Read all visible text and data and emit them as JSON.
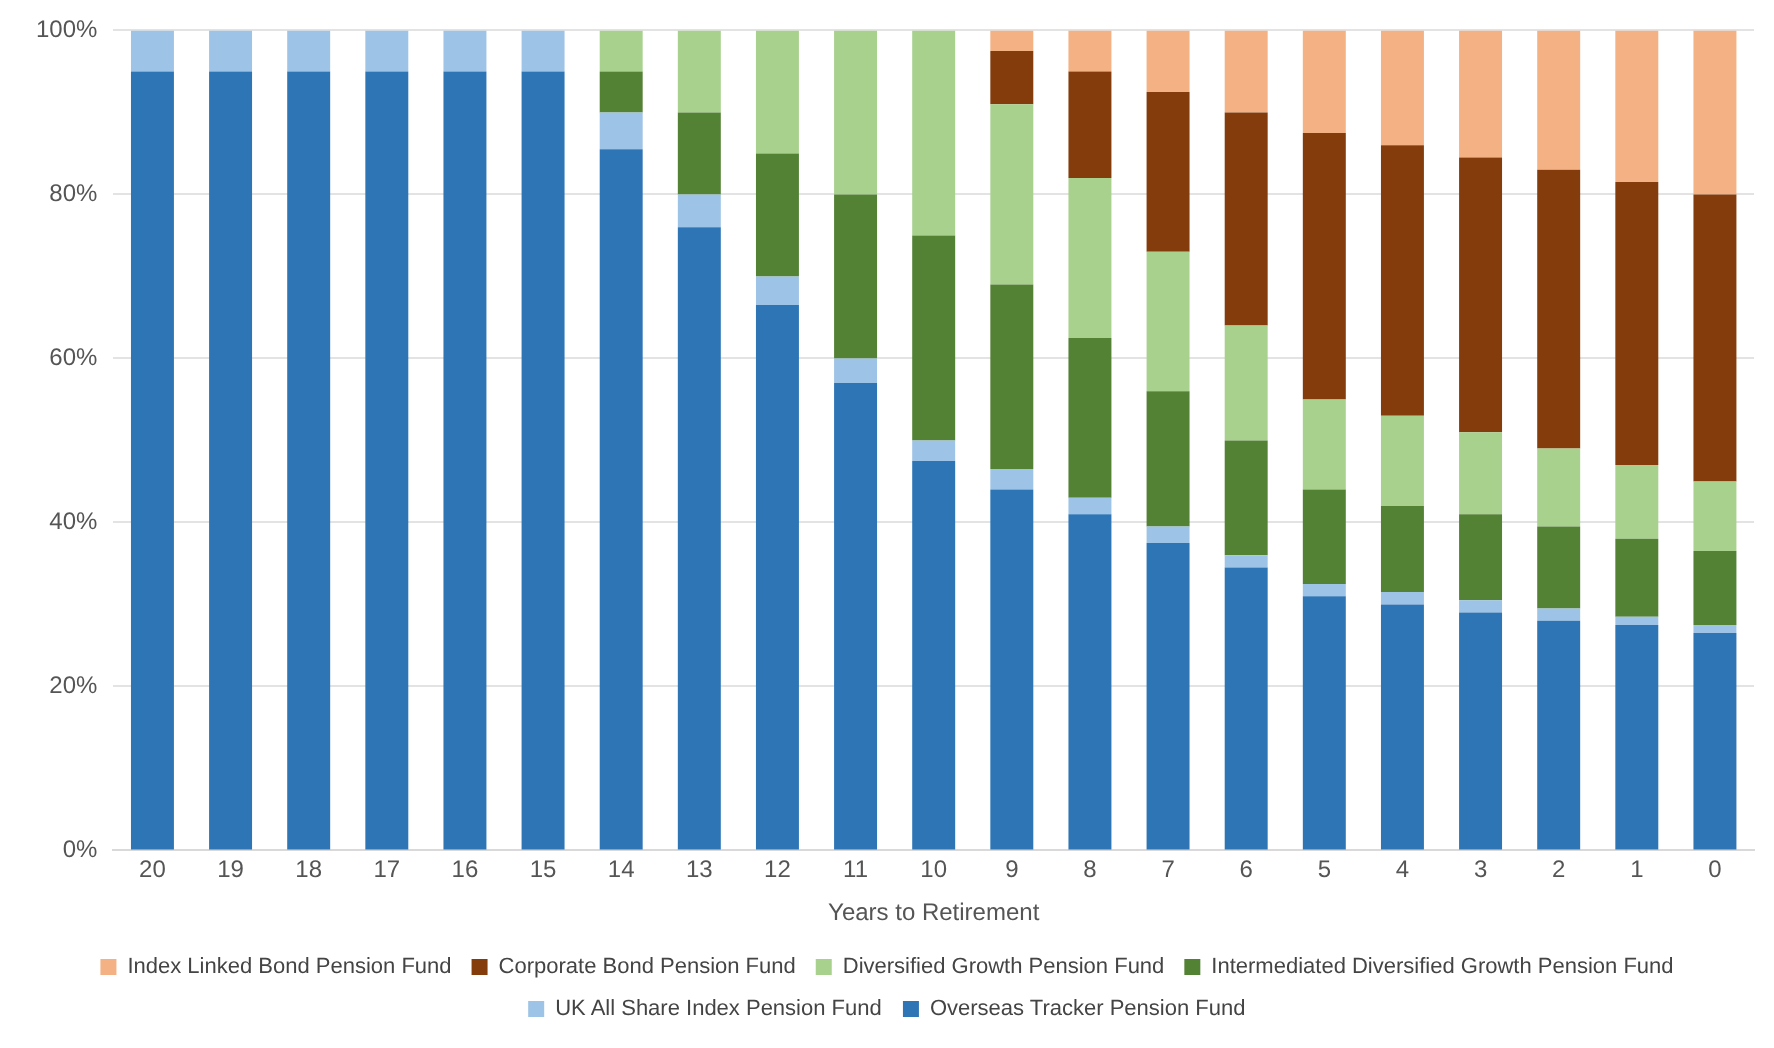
{
  "chart_data": {
    "type": "bar",
    "stacked": true,
    "xlabel": "Years to Retirement",
    "categories": [
      "20",
      "19",
      "18",
      "17",
      "16",
      "15",
      "14",
      "13",
      "12",
      "11",
      "10",
      "9",
      "8",
      "7",
      "6",
      "5",
      "4",
      "3",
      "2",
      "1",
      "0"
    ],
    "series": [
      {
        "name": "Overseas Tracker Pension Fund",
        "color": "#2e75b6",
        "values": [
          95,
          95,
          95,
          95,
          95,
          95,
          85.5,
          76,
          66.5,
          57,
          47.5,
          44,
          41,
          37.5,
          34.5,
          31,
          30,
          29,
          28,
          27.5,
          26.5
        ]
      },
      {
        "name": "UK All Share Index Pension Fund",
        "color": "#9dc3e6",
        "values": [
          5,
          5,
          5,
          5,
          5,
          5,
          4.5,
          4,
          3.5,
          3,
          2.5,
          2.5,
          2,
          2,
          1.5,
          1.5,
          1.5,
          1.5,
          1.5,
          1,
          1
        ]
      },
      {
        "name": "Intermediated Diversified Growth Pension Fund",
        "color": "#548235",
        "values": [
          0,
          0,
          0,
          0,
          0,
          0,
          5,
          10,
          15,
          20,
          25,
          22.5,
          19.5,
          16.5,
          14,
          11.5,
          10.5,
          10.5,
          10,
          9.5,
          9
        ]
      },
      {
        "name": "Diversified Growth Pension Fund",
        "color": "#a9d18e",
        "values": [
          0,
          0,
          0,
          0,
          0,
          0,
          5,
          10,
          15,
          20,
          25,
          22,
          19.5,
          17,
          14,
          11,
          11,
          10,
          9.5,
          9,
          8.5
        ]
      },
      {
        "name": "Corporate Bond Pension Fund",
        "color": "#843c0c",
        "values": [
          0,
          0,
          0,
          0,
          0,
          0,
          0,
          0,
          0,
          0,
          0,
          6.5,
          13,
          19.5,
          26,
          32.5,
          33,
          33.5,
          34,
          34.5,
          35
        ]
      },
      {
        "name": "Index Linked Bond Pension Fund",
        "color": "#f4b183",
        "values": [
          0,
          0,
          0,
          0,
          0,
          0,
          0,
          0,
          0,
          0,
          0,
          2.5,
          5,
          7.5,
          10,
          12.5,
          14,
          15.5,
          17,
          18.5,
          20
        ]
      }
    ],
    "ylim": [
      0,
      100
    ],
    "yticks": [
      {
        "value": 0,
        "label": "0%"
      },
      {
        "value": 20,
        "label": "20%"
      },
      {
        "value": 40,
        "label": "40%"
      },
      {
        "value": 60,
        "label": "60%"
      },
      {
        "value": 80,
        "label": "80%"
      },
      {
        "value": 100,
        "label": "100%"
      }
    ],
    "grid": "y",
    "legend": "bottom"
  }
}
